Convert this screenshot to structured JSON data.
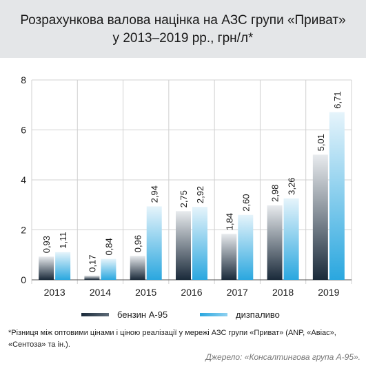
{
  "title_lines": [
    "Розрахункова валова націнка на АЗС групи «Приват»",
    "у 2013–2019 рр., грн/л*"
  ],
  "legend": {
    "petrol": "бензин А-95",
    "diesel": "дизпаливо"
  },
  "footnote": "*Різниця між оптовими цінами і ціною реалізації у мережі АЗС групи «Приват» (ANP, «Авіас», «Сентоза» та ін.).",
  "source": "Джерело: «Консалтингова група А-95».",
  "colors": {
    "background": "#ffffff",
    "title_band": "#e4e6e8",
    "petrol_dark": "#1a2a3a",
    "petrol_light": "#e8ebee",
    "diesel_dark": "#2aa7df",
    "diesel_light": "#e6f4fb",
    "grid": "#d0d0d0"
  },
  "chart_data": {
    "type": "bar",
    "categories": [
      "2013",
      "2014",
      "2015",
      "2016",
      "2017",
      "2018",
      "2019"
    ],
    "series": [
      {
        "name": "бензин А-95",
        "values": [
          0.93,
          0.17,
          0.96,
          2.75,
          1.84,
          2.98,
          5.01
        ],
        "labels": [
          "0,93",
          "0,17",
          "0,96",
          "2,75",
          "1,84",
          "2,98",
          "5,01"
        ]
      },
      {
        "name": "дизпаливо",
        "values": [
          1.11,
          0.84,
          2.94,
          2.92,
          2.6,
          3.26,
          6.71
        ],
        "labels": [
          "1,11",
          "0,84",
          "2,94",
          "2,92",
          "2,60",
          "3,26",
          "6,71"
        ]
      }
    ],
    "yticks": [
      0,
      2,
      4,
      6,
      8
    ],
    "ylim": [
      0,
      8
    ],
    "grid": true,
    "legend_position": "bottom"
  }
}
